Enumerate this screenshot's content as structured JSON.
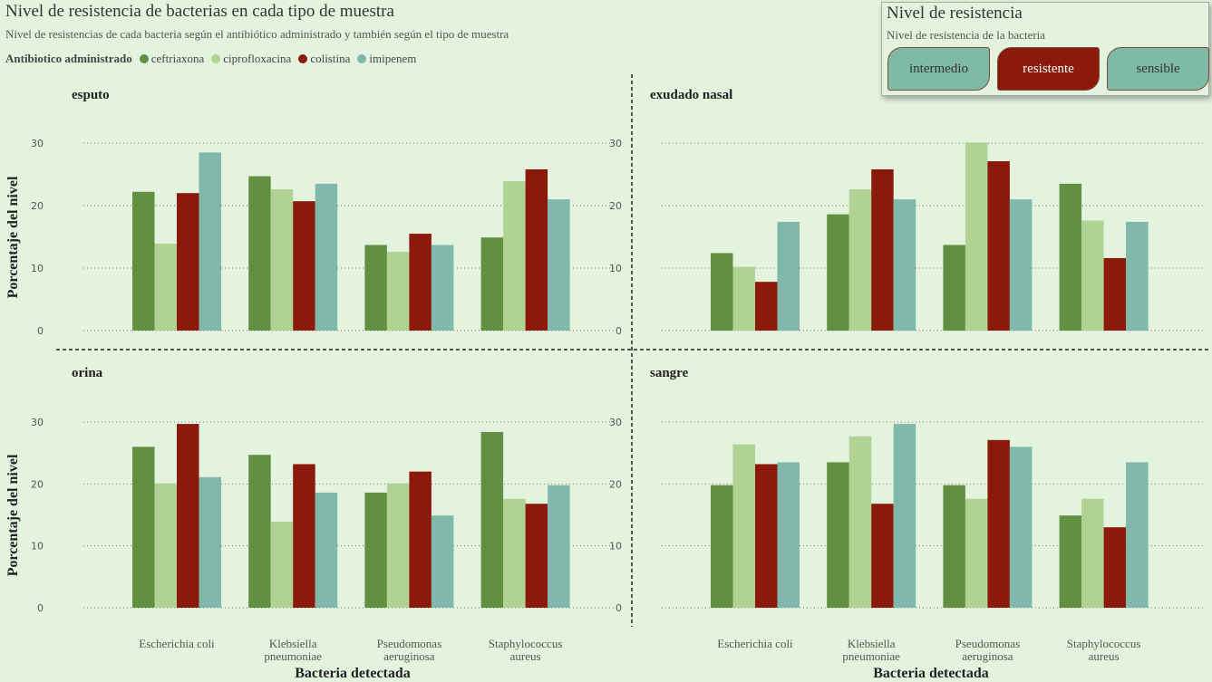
{
  "header": {
    "title": "Nivel de resistencia de bacterias en cada tipo de muestra",
    "subtitle": "Nivel de resistencias de cada bacteria según el antibiótico administrado y también según el tipo de muestra"
  },
  "legend": {
    "title": "Antibiotico administrado",
    "items": [
      {
        "label": "ceftriaxona",
        "color": "#628f42"
      },
      {
        "label": "ciprofloxacina",
        "color": "#b0d293"
      },
      {
        "label": "colistina",
        "color": "#8b1a0c"
      },
      {
        "label": "imipenem",
        "color": "#80b9ab"
      }
    ]
  },
  "slicer": {
    "title": "Nivel de resistencia",
    "subtitle": "Nivel de resistencia de la bacteria",
    "options": [
      {
        "label": "intermedio",
        "selected": false
      },
      {
        "label": "resistente",
        "selected": true
      },
      {
        "label": "sensible",
        "selected": false
      }
    ]
  },
  "chart_data": {
    "type": "bar",
    "xlabel": "Bacteria detectada",
    "ylabel": "Porcentaje del nivel",
    "ylim": [
      0,
      30
    ],
    "yticks": [
      0,
      10,
      20,
      30
    ],
    "grid": true,
    "legend_position": "top-left",
    "categories": [
      [
        "Escherichia coli"
      ],
      [
        "Klebsiella",
        "pneumoniae"
      ],
      [
        "Pseudomonas",
        "aeruginosa"
      ],
      [
        "Staphylococcus",
        "aureus"
      ]
    ],
    "series_names": [
      "ceftriaxona",
      "ciprofloxacina",
      "colistina",
      "imipenem"
    ],
    "series_colors": [
      "#628f42",
      "#b0d293",
      "#8b1a0c",
      "#80b9ab"
    ],
    "panels": [
      {
        "title": "esputo",
        "values": [
          [
            22.2,
            13.9,
            22.0,
            28.5
          ],
          [
            24.7,
            22.6,
            20.7,
            23.5
          ],
          [
            13.7,
            12.6,
            15.5,
            13.7
          ],
          [
            14.9,
            23.9,
            25.8,
            21.0
          ]
        ]
      },
      {
        "title": "exudado nasal",
        "values": [
          [
            12.4,
            10.2,
            7.8,
            17.4
          ],
          [
            18.6,
            22.6,
            25.8,
            21.0
          ],
          [
            13.7,
            30.1,
            27.1,
            21.0
          ],
          [
            23.5,
            17.6,
            11.6,
            17.4
          ]
        ]
      },
      {
        "title": "orina",
        "values": [
          [
            26.0,
            20.1,
            29.7,
            21.1
          ],
          [
            24.7,
            13.9,
            23.2,
            18.6
          ],
          [
            18.6,
            20.1,
            22.0,
            14.9
          ],
          [
            28.4,
            17.6,
            16.8,
            19.8
          ]
        ]
      },
      {
        "title": "sangre",
        "values": [
          [
            19.8,
            26.4,
            23.2,
            23.5
          ],
          [
            23.5,
            27.7,
            16.8,
            29.7
          ],
          [
            19.8,
            17.6,
            27.1,
            26.0
          ],
          [
            14.9,
            17.6,
            13.0,
            23.5
          ]
        ]
      }
    ]
  }
}
